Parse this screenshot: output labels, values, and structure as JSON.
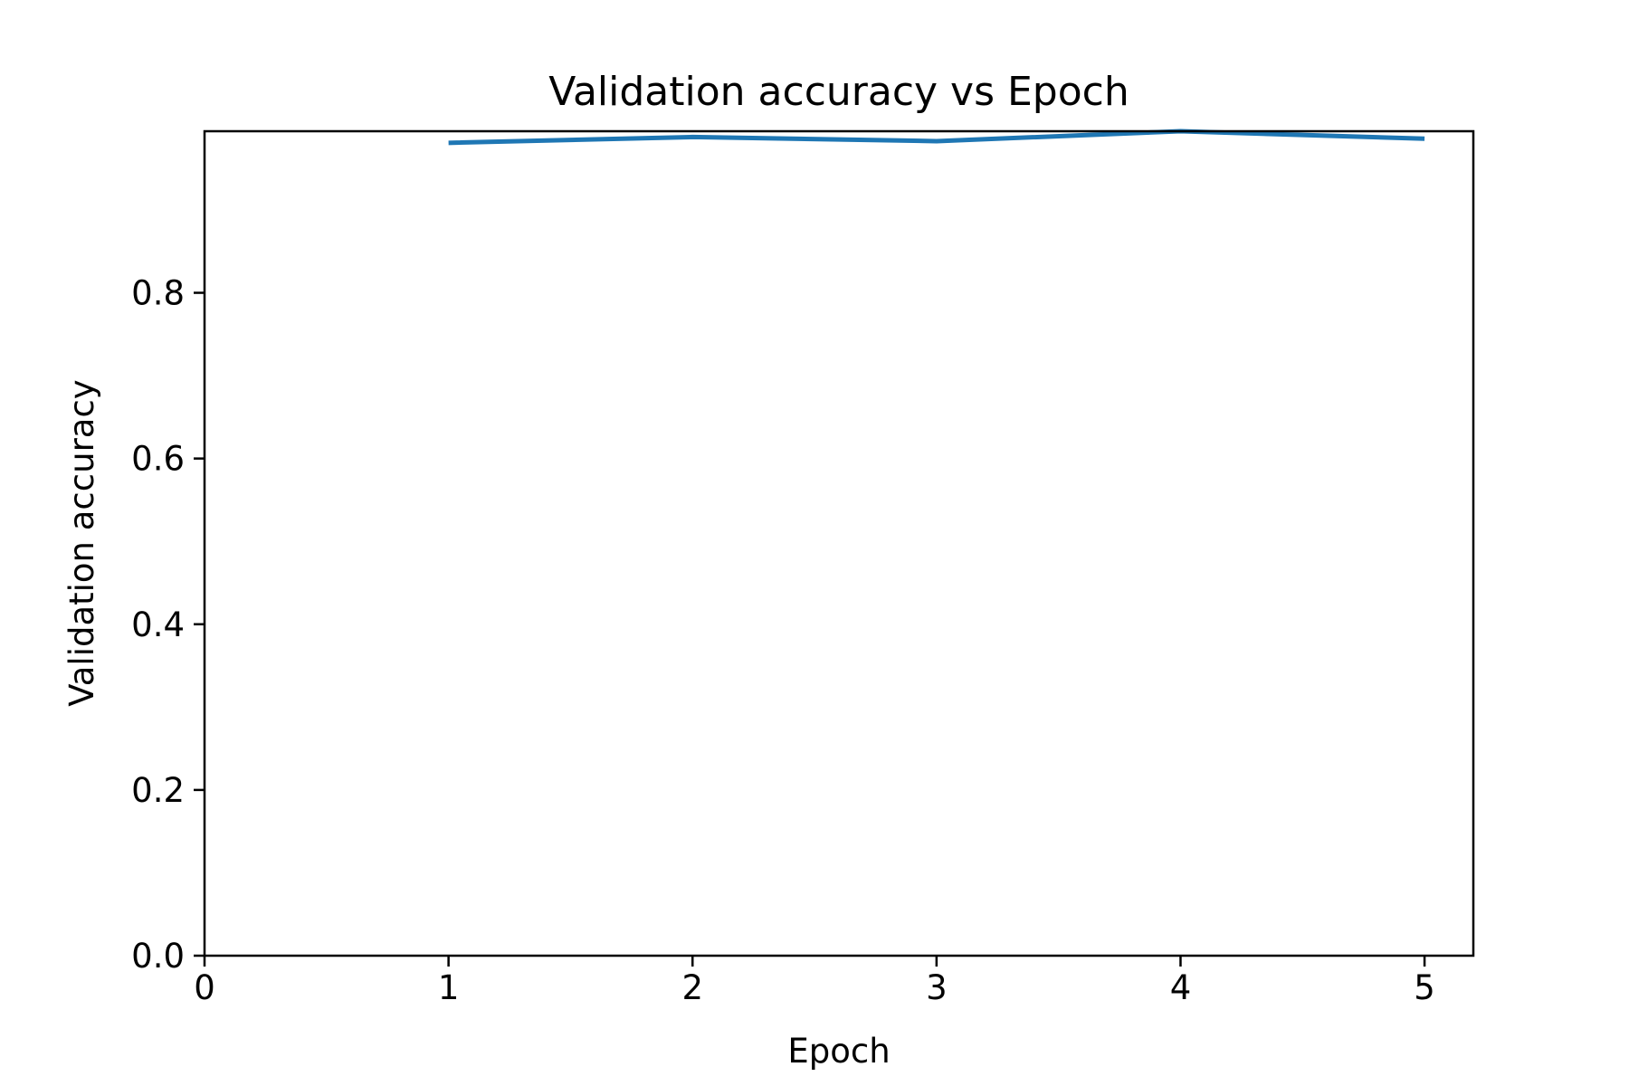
{
  "chart_data": {
    "type": "line",
    "title": "Validation accuracy vs Epoch",
    "xlabel": "Epoch",
    "ylabel": "Validation accuracy",
    "xlim": [
      0,
      5.2
    ],
    "ylim": [
      0,
      0.995
    ],
    "xticks": [
      0,
      1,
      2,
      3,
      4,
      5
    ],
    "xtick_labels": [
      "0",
      "1",
      "2",
      "3",
      "4",
      "5"
    ],
    "yticks": [
      0.0,
      0.2,
      0.4,
      0.6,
      0.8
    ],
    "ytick_labels": [
      "0.0",
      "0.2",
      "0.4",
      "0.6",
      "0.8"
    ],
    "grid": false,
    "legend": "none",
    "series": [
      {
        "color": "#1f77b4",
        "x": [
          1,
          2,
          3,
          4,
          5
        ],
        "y": [
          0.981,
          0.988,
          0.983,
          0.995,
          0.986
        ]
      }
    ]
  }
}
